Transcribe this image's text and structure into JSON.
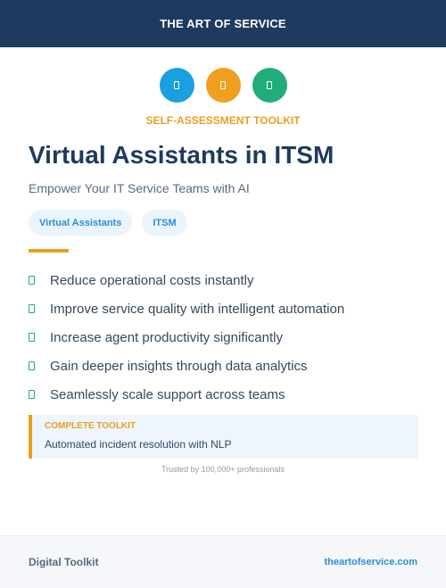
{
  "header": {
    "brand": "THE ART OF SERVICE",
    "bg": "#1e3a5f"
  },
  "icons": [
    {
      "name": "document-icon",
      "color": "#1a9fe0"
    },
    {
      "name": "document-icon",
      "color": "#f0a020"
    },
    {
      "name": "document-icon",
      "color": "#1fae7a"
    }
  ],
  "hero": {
    "kicker": "SELF-ASSESSMENT TOOLKIT",
    "title": "Virtual Assistants in ITSM",
    "subtitle": "Empower Your IT Service Teams with AI"
  },
  "tags": [
    "Virtual Assistants",
    "ITSM"
  ],
  "features": [
    "Reduce operational costs instantly",
    "Improve service quality with intelligent automation",
    "Increase agent productivity significantly",
    "Gain deeper insights through data analytics",
    "Seamlessly scale support across teams"
  ],
  "callout": {
    "label": "COMPLETE TOOLKIT",
    "text": "Automated incident resolution with NLP"
  },
  "trusted": "Trusted by 100,000+ professionals",
  "footer": {
    "left": "Digital Toolkit",
    "right": "theartofservice.com"
  },
  "colors": {
    "accent": "#e8a020",
    "navy": "#1e3a5f",
    "blue": "#2a8fd6",
    "green": "#1fae7a"
  }
}
